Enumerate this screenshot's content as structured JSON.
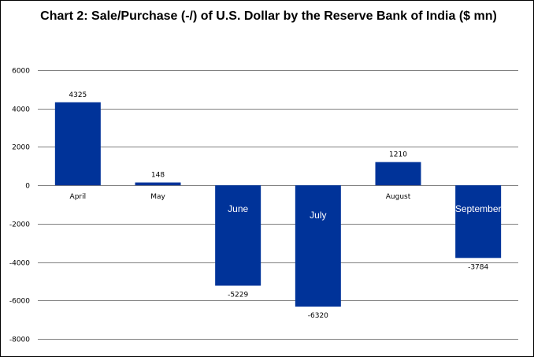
{
  "chart_data": {
    "type": "bar",
    "title": "Chart 2: Sale/Purchase (-/) of U.S. Dollar by the Reserve Bank of India ($ mn)",
    "categories": [
      "April",
      "May",
      "June",
      "July",
      "August",
      "September"
    ],
    "values": [
      4325,
      148,
      -5229,
      -6320,
      1210,
      -3784
    ],
    "data_labels": [
      "4325",
      "148",
      "-5229",
      "-6320",
      "1210",
      "-3784"
    ],
    "ylim": [
      -8000,
      6000
    ],
    "yticks": [
      6000,
      4000,
      2000,
      0,
      -2000,
      -4000,
      -6000,
      -8000
    ],
    "grid": true,
    "legend": "none",
    "colors": {
      "bar": "#003399",
      "grid": "#808080"
    }
  }
}
